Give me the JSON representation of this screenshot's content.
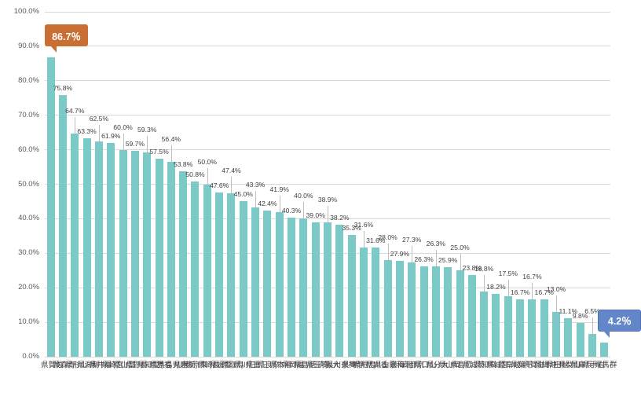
{
  "chart_data": {
    "type": "bar",
    "title": "",
    "xlabel": "",
    "ylabel": "",
    "ylim": [
      0,
      100
    ],
    "ytick_step": 10,
    "ytick_labels": [
      "100.0%",
      "90.0%",
      "80.0%",
      "70.0%",
      "60.0%",
      "50.0%",
      "40.0%",
      "30.0%",
      "20.0%",
      "10.0%",
      "0.0%"
    ],
    "grid": true,
    "legend": "none",
    "value_label_format": "one-decimal-percent",
    "categories": [
      "佐賀県",
      "青森県",
      "山形県",
      "新潟県",
      "福井県",
      "宮崎県",
      "富山県",
      "長野県",
      "愛知県",
      "福島県",
      "鹿児島県",
      "栃木県",
      "東京都",
      "長崎県",
      "愛媛県",
      "鳥取県",
      "石川県",
      "三重県",
      "奈良県",
      "熊本県",
      "福岡県",
      "徳島県",
      "埼玉県",
      "大阪府",
      "神奈川県",
      "静岡県",
      "島根県",
      "香川県",
      "和歌山県",
      "北海道",
      "京都府",
      "山口県",
      "大分県",
      "岡山県",
      "広島県",
      "茨城県",
      "高知県",
      "宮城県",
      "岐阜県",
      "千葉県",
      "滋賀県",
      "沖縄県",
      "秋田県",
      "山梨県",
      "兵庫県",
      "岩手県",
      "群馬県"
    ],
    "values": [
      86.7,
      75.8,
      64.7,
      63.3,
      62.5,
      61.9,
      60.0,
      59.7,
      59.3,
      57.5,
      56.4,
      53.8,
      50.8,
      50.0,
      47.6,
      47.4,
      45.0,
      43.3,
      42.4,
      41.9,
      40.3,
      40.0,
      39.0,
      38.9,
      38.2,
      35.3,
      31.6,
      31.6,
      28.0,
      27.9,
      27.3,
      26.3,
      26.3,
      25.9,
      25.0,
      23.8,
      18.8,
      18.2,
      17.5,
      16.7,
      16.7,
      16.7,
      13.0,
      11.1,
      9.8,
      6.5,
      4.2
    ],
    "label_levels": [
      "callout",
      "low",
      "high",
      "low",
      "high",
      "low",
      "high",
      "low",
      "high",
      "low",
      "high",
      "low",
      "low",
      "high",
      "low",
      "high",
      "low",
      "high",
      "low",
      "high",
      "low",
      "high",
      "low",
      "high",
      "low",
      "low",
      "high",
      "low",
      "high",
      "low",
      "high",
      "low",
      "high",
      "low",
      "high",
      "low",
      "high",
      "low",
      "high",
      "low",
      "high",
      "low",
      "high",
      "low",
      "low",
      "high",
      "callout"
    ],
    "colors": {
      "bar": "#7ccac8",
      "gridline": "#d9d9d9",
      "value_label": "#404040",
      "axis_tick_label": "#595959",
      "category_label": "#404040",
      "leader_line": "#bfbfbf"
    },
    "callouts": [
      {
        "index": 0,
        "text": "86.7％",
        "fill": "#c96f33",
        "border": "#c96f33",
        "text_color": "#ffffff"
      },
      {
        "index": 46,
        "text": "4.2％",
        "fill": "#6286c8",
        "border": "#4e73b4",
        "text_color": "#ffffff"
      }
    ]
  }
}
